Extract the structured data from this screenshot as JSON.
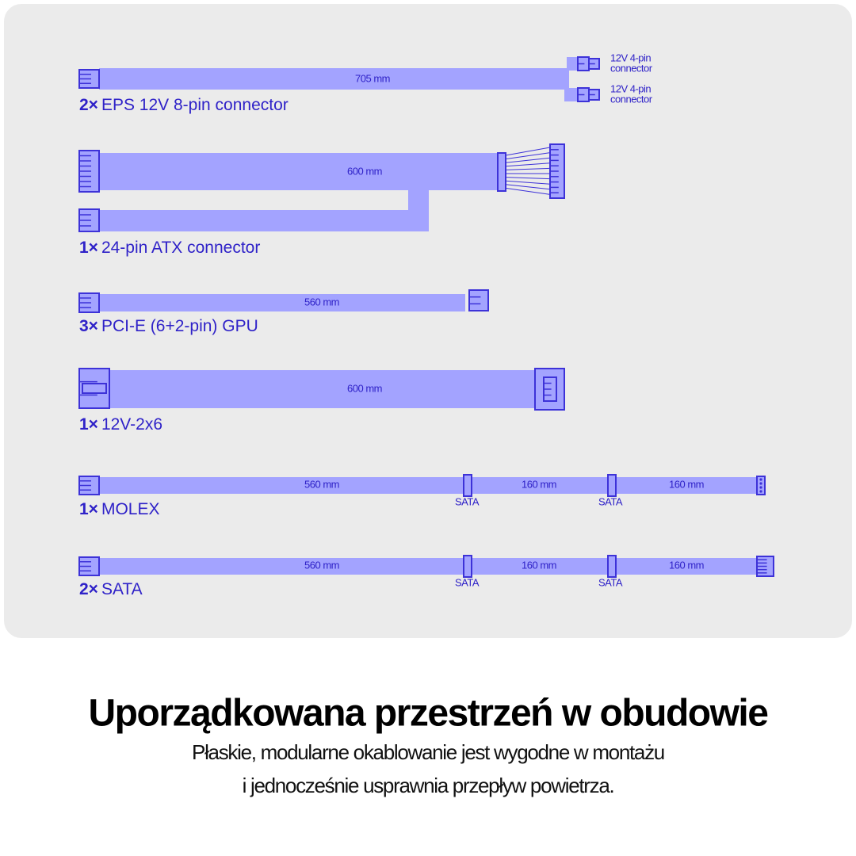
{
  "cables": [
    {
      "count": "2×",
      "name": "EPS 12V 8-pin connector",
      "lengths": [
        "705 mm"
      ],
      "branches": [
        [
          "12V 4-pin",
          "connector"
        ],
        [
          "12V 4-pin",
          "connector"
        ]
      ]
    },
    {
      "count": "1×",
      "name": "24-pin ATX connector",
      "lengths": [
        "600 mm"
      ]
    },
    {
      "count": "3×",
      "name": "PCI-E (6+2-pin) GPU",
      "lengths": [
        "560 mm"
      ]
    },
    {
      "count": "1×",
      "name": "12V-2x6",
      "lengths": [
        "600 mm"
      ]
    },
    {
      "count": "1×",
      "name": "MOLEX",
      "lengths": [
        "560 mm",
        "160 mm",
        "160 mm"
      ],
      "taps": [
        "SATA",
        "SATA"
      ]
    },
    {
      "count": "2×",
      "name": "SATA",
      "lengths": [
        "560 mm",
        "160 mm",
        "160 mm"
      ],
      "taps": [
        "SATA",
        "SATA"
      ]
    }
  ],
  "heading": {
    "title": "Uporządkowana przestrzeń w obudowie",
    "subtitle": [
      "Płaskie, modularne okablowanie jest wygodne w montażu",
      "i jednocześnie usprawnia przepływ powietrza."
    ]
  }
}
